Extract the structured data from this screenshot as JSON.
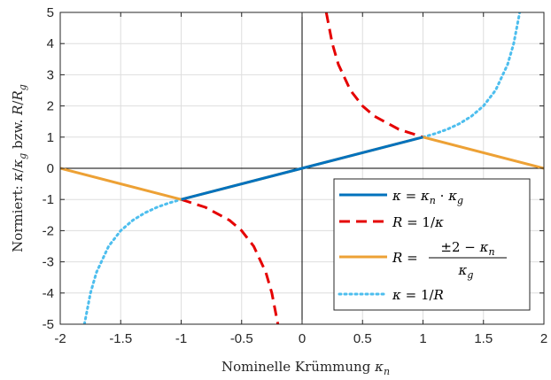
{
  "chart_data": {
    "type": "line",
    "title": "",
    "xlabel_text": "Nominelle Krümmung ",
    "xlabel_symbol": "κ",
    "xlabel_sub": "n",
    "ylabel_prefix": "Normiert: ",
    "ylabel_symbol1": "κ",
    "ylabel_slash1": "/",
    "ylabel_symbol2": "κ",
    "ylabel_sub2": "g",
    "ylabel_mid": " bzw. ",
    "ylabel_r1": "R",
    "ylabel_slash2": "/",
    "ylabel_r2": "R",
    "ylabel_sub3": "g",
    "xlim": [
      -2,
      2
    ],
    "ylim": [
      -5,
      5
    ],
    "grid": true,
    "legend_position": "bottom-right",
    "xticks": [
      -2,
      -1.5,
      -1,
      -0.5,
      0,
      0.5,
      1,
      1.5,
      2
    ],
    "xtick_labels": [
      "-2",
      "-1.5",
      "-1",
      "-0.5",
      "0",
      "0.5",
      "1",
      "1.5",
      "2"
    ],
    "yticks": [
      -5,
      -4,
      -3,
      -2,
      -1,
      0,
      1,
      2,
      3,
      4,
      5
    ],
    "ytick_labels": [
      "-5",
      "-4",
      "-3",
      "-2",
      "-1",
      "0",
      "1",
      "2",
      "3",
      "4",
      "5"
    ],
    "series": [
      {
        "key": "kappa",
        "color": "#0072BD",
        "style": "solid",
        "legend_text": "κ = κn · κg",
        "legend_parts": [
          "κ",
          " = ",
          "κ",
          "n",
          " · ",
          "κ",
          "g"
        ],
        "x": [
          -1,
          0,
          1
        ],
        "y": [
          -1,
          0,
          1
        ]
      },
      {
        "key": "radius",
        "color": "#E50000",
        "style": "dashed",
        "legend_text": "R = 1/κ",
        "legend_parts": [
          "R",
          " = 1/",
          "κ"
        ],
        "x": [
          -1,
          -0.8,
          -0.6,
          -0.5,
          -0.4,
          -0.3,
          -0.25,
          -0.2,
          0.2,
          0.25,
          0.3,
          0.4,
          0.5,
          0.6,
          0.8,
          1
        ],
        "y": [
          -1,
          -1.25,
          -1.667,
          -2,
          -2.5,
          -3.333,
          -4,
          -5,
          5,
          4,
          3.333,
          2.5,
          2,
          1.667,
          1.25,
          1
        ]
      },
      {
        "key": "radius-linear",
        "color": "#EDA135",
        "style": "solid",
        "legend_text": "R = (±2 − κn) / κg",
        "legend_parts": [
          "R",
          " = ",
          "±2 − ",
          "κ",
          "n",
          "κ",
          "g"
        ],
        "x": [
          -2,
          -1,
          1,
          2
        ],
        "y": [
          0,
          -1,
          1,
          0
        ]
      },
      {
        "key": "curvature",
        "color": "#4DBEEE",
        "style": "dotted",
        "legend_text": "κ = 1/R",
        "legend_parts": [
          "κ",
          " = 1/",
          "R"
        ],
        "x": [
          -1.8,
          -1.75,
          -1.7,
          -1.6,
          -1.5,
          -1.4,
          -1.3,
          -1.2,
          -1.1,
          -1,
          1,
          1.1,
          1.2,
          1.3,
          1.4,
          1.5,
          1.6,
          1.7,
          1.75,
          1.8
        ],
        "y": [
          -5,
          -4,
          -3.333,
          -2.5,
          -2,
          -1.667,
          -1.429,
          -1.25,
          -1.111,
          -1,
          1,
          1.111,
          1.25,
          1.429,
          1.667,
          2,
          2.5,
          3.333,
          4,
          5
        ]
      }
    ]
  }
}
